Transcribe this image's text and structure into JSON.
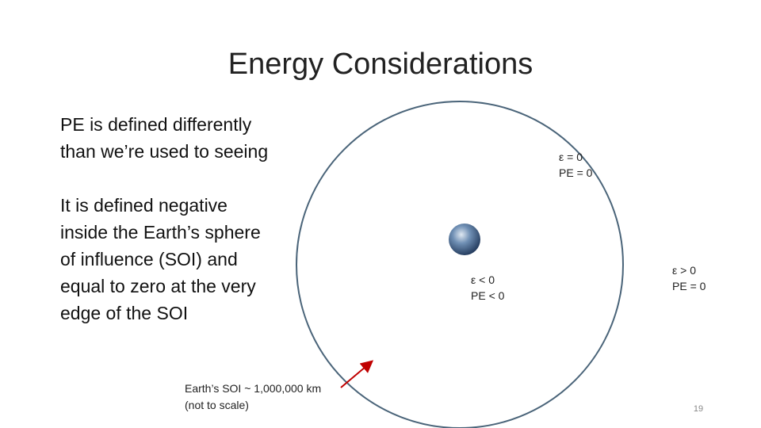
{
  "title": "Energy Considerations",
  "paragraphs": [
    [
      "PE is defined differently",
      "than we’re used to seeing"
    ],
    [
      "It is defined negative",
      "inside the Earth’s sphere",
      "of influence (SOI) and",
      "equal to zero at the very",
      "edge of the SOI"
    ]
  ],
  "regions": [
    {
      "energy": "ε = 0",
      "pe": "PE = 0"
    },
    {
      "energy": "ε < 0",
      "pe": "PE < 0"
    },
    {
      "energy": "ε > 0",
      "pe": "PE = 0"
    }
  ],
  "caption": [
    "Earth’s SOI ~ 1,000,000 km",
    "(not to scale)"
  ],
  "page_number": "19"
}
